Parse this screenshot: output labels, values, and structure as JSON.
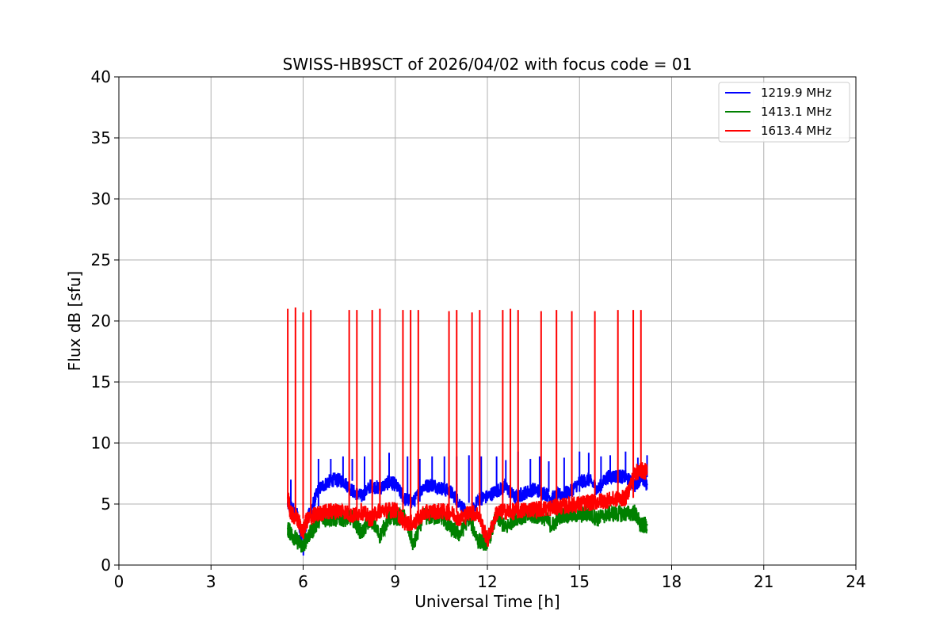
{
  "chart_data": {
    "type": "line",
    "title": "SWISS-HB9SCT of 2026/04/02 with focus code = 01",
    "xlabel": "Universal Time [h]",
    "ylabel": "Flux dB [sfu]",
    "xlim": [
      0,
      24
    ],
    "ylim": [
      0,
      40
    ],
    "xticks": [
      0,
      3,
      6,
      9,
      12,
      15,
      18,
      21,
      24
    ],
    "yticks": [
      0,
      5,
      10,
      15,
      20,
      25,
      30,
      35,
      40
    ],
    "grid": true,
    "legend_position": "top-right",
    "series": [
      {
        "name": "1219.9 MHz",
        "color": "#0000ff",
        "x": [
          5.5,
          5.6,
          5.8,
          6.0,
          6.1,
          6.3,
          6.5,
          6.8,
          7.0,
          7.3,
          7.6,
          7.9,
          8.2,
          8.5,
          8.8,
          9.0,
          9.3,
          9.6,
          9.9,
          10.2,
          10.5,
          10.8,
          11.1,
          11.4,
          11.7,
          12.0,
          12.3,
          12.6,
          12.9,
          13.2,
          13.5,
          13.8,
          14.1,
          14.4,
          14.7,
          15.0,
          15.3,
          15.6,
          15.9,
          16.2,
          16.5,
          16.8,
          17.0,
          17.2
        ],
        "y": [
          5.0,
          4.8,
          4.2,
          1.2,
          3.5,
          4.8,
          6.2,
          6.8,
          7.0,
          6.9,
          6.1,
          5.6,
          6.5,
          6.3,
          6.8,
          6.6,
          5.4,
          5.2,
          6.4,
          6.6,
          6.3,
          6.0,
          5.1,
          3.8,
          5.4,
          5.6,
          6.1,
          6.4,
          5.5,
          5.9,
          6.2,
          6.0,
          5.5,
          5.8,
          6.0,
          6.8,
          7.0,
          6.2,
          7.2,
          7.3,
          7.2,
          6.5,
          7.2,
          6.6
        ],
        "spike_x": [
          5.6,
          6.0,
          6.5,
          6.9,
          7.3,
          7.6,
          8.0,
          8.5,
          8.8,
          9.4,
          9.8,
          10.2,
          10.6,
          11.0,
          11.4,
          11.8,
          12.3,
          12.6,
          13.0,
          13.4,
          13.7,
          14.0,
          14.5,
          15.0,
          15.3,
          15.7,
          16.0,
          16.5,
          16.9,
          17.2
        ],
        "spike_y": [
          7.0,
          8.6,
          8.7,
          8.7,
          8.9,
          8.7,
          8.9,
          8.6,
          9.2,
          8.9,
          8.7,
          8.9,
          8.9,
          8.9,
          9.0,
          8.9,
          8.9,
          8.6,
          9.3,
          8.7,
          8.9,
          8.5,
          8.8,
          9.3,
          9.2,
          8.9,
          9.0,
          9.3,
          8.8,
          9.0
        ],
        "noise_band": 0.6
      },
      {
        "name": "1413.1 MHz",
        "color": "#008000",
        "x": [
          5.5,
          5.6,
          5.8,
          6.0,
          6.1,
          6.3,
          6.5,
          6.8,
          7.0,
          7.3,
          7.6,
          7.9,
          8.2,
          8.5,
          8.8,
          9.0,
          9.3,
          9.6,
          9.9,
          10.2,
          10.5,
          10.8,
          11.1,
          11.4,
          11.7,
          12.0,
          12.3,
          12.6,
          12.9,
          13.2,
          13.5,
          13.8,
          14.1,
          14.4,
          14.7,
          15.0,
          15.3,
          15.6,
          15.9,
          16.2,
          16.5,
          16.8,
          17.0,
          17.2
        ],
        "y": [
          3.0,
          2.6,
          2.0,
          1.5,
          2.2,
          2.8,
          3.7,
          3.8,
          3.8,
          3.8,
          3.9,
          2.6,
          3.8,
          2.4,
          3.9,
          3.9,
          3.9,
          1.6,
          4.0,
          3.9,
          4.0,
          3.0,
          2.5,
          3.9,
          2.0,
          1.8,
          4.0,
          3.0,
          3.9,
          4.0,
          4.0,
          4.0,
          3.2,
          4.1,
          4.1,
          4.1,
          4.2,
          3.8,
          4.2,
          4.2,
          4.2,
          4.3,
          3.2,
          3.3
        ],
        "spike_x": [],
        "spike_y": [],
        "noise_band": 0.7
      },
      {
        "name": "1613.4 MHz",
        "color": "#ff0000",
        "x": [
          5.5,
          5.6,
          5.8,
          6.0,
          6.1,
          6.3,
          6.5,
          6.8,
          7.0,
          7.3,
          7.6,
          7.9,
          8.2,
          8.5,
          8.8,
          9.0,
          9.3,
          9.6,
          9.9,
          10.2,
          10.5,
          10.8,
          11.1,
          11.4,
          11.7,
          12.0,
          12.3,
          12.6,
          12.9,
          13.2,
          13.5,
          13.8,
          14.1,
          14.4,
          14.7,
          15.0,
          15.3,
          15.6,
          15.9,
          16.2,
          16.5,
          16.8,
          17.0,
          17.2
        ],
        "y": [
          5.5,
          4.2,
          3.8,
          2.7,
          3.6,
          4.0,
          4.2,
          4.4,
          4.4,
          4.5,
          4.0,
          4.4,
          3.8,
          4.5,
          4.5,
          4.5,
          3.5,
          3.4,
          4.2,
          4.4,
          4.4,
          4.3,
          3.8,
          4.3,
          4.2,
          2.0,
          4.3,
          4.4,
          4.4,
          4.5,
          4.6,
          4.6,
          4.7,
          4.8,
          4.9,
          5.0,
          5.1,
          5.2,
          5.3,
          5.4,
          5.5,
          7.5,
          7.8,
          7.6
        ],
        "spike_x": [
          5.5,
          5.75,
          6.0,
          6.25,
          7.5,
          7.75,
          8.25,
          8.5,
          9.25,
          9.5,
          9.75,
          10.75,
          11.0,
          11.5,
          11.75,
          12.5,
          12.75,
          13.0,
          13.75,
          14.25,
          14.75,
          15.5,
          16.25,
          16.75,
          17.0
        ],
        "spike_y": [
          21.0,
          21.1,
          20.7,
          20.9,
          20.9,
          20.9,
          20.9,
          21.0,
          20.9,
          20.9,
          20.9,
          20.8,
          20.9,
          20.7,
          20.9,
          20.9,
          21.0,
          20.9,
          20.8,
          20.9,
          20.8,
          20.8,
          20.9,
          20.9,
          20.9
        ],
        "noise_band": 0.7
      }
    ]
  }
}
